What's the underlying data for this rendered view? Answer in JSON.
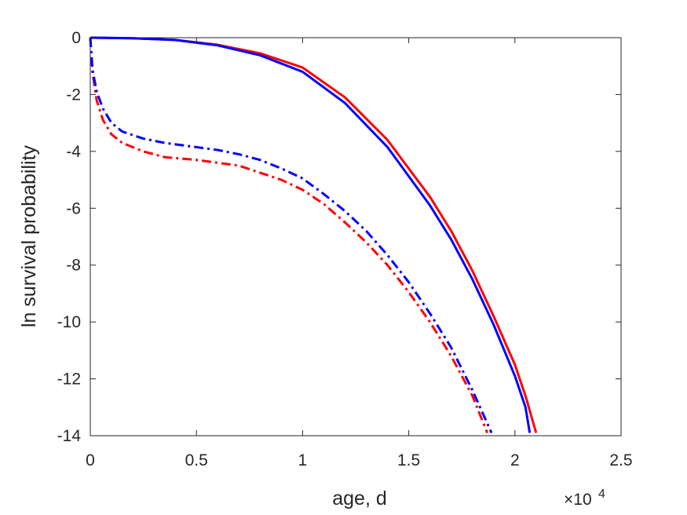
{
  "chart_data": {
    "type": "line",
    "xlabel": "age, d",
    "ylabel": "ln survival probability",
    "x_multiplier_label": "×10",
    "x_multiplier_exponent": "4",
    "xlim": [
      0,
      25000
    ],
    "ylim": [
      -14,
      0
    ],
    "xticks": [
      0,
      5000,
      10000,
      15000,
      20000,
      25000
    ],
    "xtick_labels": [
      "0",
      "0.5",
      "1",
      "1.5",
      "2",
      "2.5"
    ],
    "yticks": [
      0,
      -2,
      -4,
      -6,
      -8,
      -10,
      -12,
      -14
    ],
    "ytick_labels": [
      "0",
      "-2",
      "-4",
      "-6",
      "-8",
      "-10",
      "-12",
      "-14"
    ],
    "grid": false,
    "series": [
      {
        "color": "#ff0000",
        "line_style": "solid",
        "x": [
          0,
          2000,
          4000,
          6000,
          8000,
          10000,
          12000,
          14000,
          16000,
          17000,
          18000,
          19000,
          20000,
          20500,
          21000
        ],
        "y": [
          0,
          -0.02,
          -0.08,
          -0.25,
          -0.55,
          -1.05,
          -2.1,
          -3.6,
          -5.6,
          -6.8,
          -8.2,
          -9.8,
          -11.5,
          -12.6,
          -13.9
        ]
      },
      {
        "color": "#0000ff",
        "line_style": "solid",
        "x": [
          0,
          2000,
          4000,
          6000,
          8000,
          10000,
          12000,
          14000,
          16000,
          17000,
          18000,
          19000,
          20000,
          20500,
          20700
        ],
        "y": [
          0,
          -0.02,
          -0.08,
          -0.27,
          -0.62,
          -1.2,
          -2.3,
          -3.85,
          -5.9,
          -7.1,
          -8.5,
          -10.1,
          -11.9,
          -13.0,
          -13.9
        ]
      },
      {
        "color": "#ff0000",
        "line_style": "dashdot",
        "x": [
          0,
          100,
          300,
          600,
          1000,
          1500,
          2500,
          3500,
          5000,
          6000,
          7000,
          8000,
          9000,
          10000,
          11000,
          12000,
          13000,
          14000,
          15000,
          16000,
          17000,
          18000,
          18700
        ],
        "y": [
          0,
          -1.2,
          -2.2,
          -2.9,
          -3.4,
          -3.7,
          -4.0,
          -4.2,
          -4.3,
          -4.4,
          -4.5,
          -4.75,
          -5.0,
          -5.35,
          -5.85,
          -6.5,
          -7.2,
          -8.0,
          -8.95,
          -10.0,
          -11.2,
          -12.6,
          -13.9
        ]
      },
      {
        "color": "#0000ff",
        "line_style": "dashdot",
        "x": [
          0,
          100,
          300,
          600,
          1000,
          1500,
          2500,
          3500,
          5000,
          6000,
          7000,
          8000,
          9000,
          10000,
          11000,
          12000,
          13000,
          14000,
          15000,
          16000,
          17000,
          18000,
          18900
        ],
        "y": [
          0,
          -1.1,
          -1.9,
          -2.5,
          -3.0,
          -3.3,
          -3.55,
          -3.7,
          -3.85,
          -3.95,
          -4.1,
          -4.3,
          -4.6,
          -4.95,
          -5.5,
          -6.1,
          -6.8,
          -7.65,
          -8.6,
          -9.7,
          -10.9,
          -12.4,
          -13.9
        ]
      }
    ]
  }
}
